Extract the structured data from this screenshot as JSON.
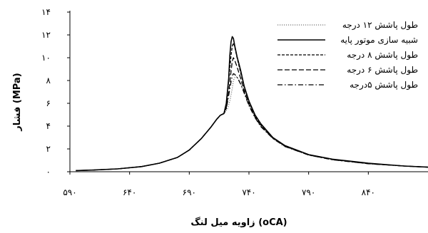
{
  "chart_data": {
    "type": "line",
    "title": "",
    "xlabel": "زاویه میل لنگ  (oCA)",
    "ylabel": "فشار  (MPa)",
    "xlim": [
      590,
      890
    ],
    "ylim": [
      0,
      14
    ],
    "xticks": [
      590,
      640,
      690,
      740,
      790,
      840
    ],
    "xtick_labels": [
      "۵۹۰",
      "۶۴۰",
      "۶۹۰",
      "۷۴۰",
      "۷۹۰",
      "۸۴۰"
    ],
    "yticks": [
      0,
      2,
      4,
      6,
      8,
      10,
      12,
      14
    ],
    "ytick_labels": [
      "۰",
      "۲",
      "۴",
      "۶",
      "۸",
      "۱۰",
      "۱۲",
      "۱۴"
    ],
    "grid": false,
    "legend_position": "top-right",
    "series": [
      {
        "name": "طول پاشش ۱۲ درجه",
        "style": "dotted",
        "points": [
          [
            595,
            0.1
          ],
          [
            610,
            0.15
          ],
          [
            630,
            0.25
          ],
          [
            650,
            0.45
          ],
          [
            665,
            0.75
          ],
          [
            680,
            1.25
          ],
          [
            690,
            1.9
          ],
          [
            700,
            2.9
          ],
          [
            708,
            3.9
          ],
          [
            713,
            4.6
          ],
          [
            716,
            4.95
          ],
          [
            719,
            5.1
          ],
          [
            722,
            5.5
          ],
          [
            724,
            6.2
          ],
          [
            726,
            7.3
          ],
          [
            727,
            8.0
          ],
          [
            728,
            8.25
          ],
          [
            729,
            8.35
          ],
          [
            730,
            8.3
          ],
          [
            732,
            8.0
          ],
          [
            735,
            7.2
          ],
          [
            740,
            5.8
          ],
          [
            745,
            4.8
          ],
          [
            750,
            4.0
          ],
          [
            760,
            2.9
          ],
          [
            770,
            2.2
          ],
          [
            790,
            1.45
          ],
          [
            810,
            1.05
          ],
          [
            840,
            0.7
          ],
          [
            870,
            0.5
          ],
          [
            890,
            0.4
          ]
        ]
      },
      {
        "name": "شبیه سازی موتور پایه",
        "style": "solid",
        "points": [
          [
            595,
            0.1
          ],
          [
            610,
            0.15
          ],
          [
            630,
            0.25
          ],
          [
            650,
            0.45
          ],
          [
            665,
            0.75
          ],
          [
            680,
            1.25
          ],
          [
            690,
            1.9
          ],
          [
            700,
            2.9
          ],
          [
            708,
            3.9
          ],
          [
            713,
            4.6
          ],
          [
            716,
            4.95
          ],
          [
            719,
            5.1
          ],
          [
            721,
            6.0
          ],
          [
            723,
            8.2
          ],
          [
            724,
            10.2
          ],
          [
            725,
            11.4
          ],
          [
            726,
            11.85
          ],
          [
            727,
            11.7
          ],
          [
            728,
            11.1
          ],
          [
            730,
            10.1
          ],
          [
            733,
            8.9
          ],
          [
            736,
            7.5
          ],
          [
            740,
            6.2
          ],
          [
            745,
            5.0
          ],
          [
            750,
            4.2
          ],
          [
            760,
            3.0
          ],
          [
            770,
            2.3
          ],
          [
            790,
            1.5
          ],
          [
            810,
            1.1
          ],
          [
            840,
            0.75
          ],
          [
            870,
            0.5
          ],
          [
            890,
            0.4
          ]
        ]
      },
      {
        "name": "طول پاشش ۸ درجه",
        "style": "dashed",
        "points": [
          [
            595,
            0.1
          ],
          [
            610,
            0.15
          ],
          [
            630,
            0.25
          ],
          [
            650,
            0.45
          ],
          [
            665,
            0.75
          ],
          [
            680,
            1.25
          ],
          [
            690,
            1.9
          ],
          [
            700,
            2.9
          ],
          [
            708,
            3.9
          ],
          [
            713,
            4.6
          ],
          [
            716,
            4.95
          ],
          [
            719,
            5.1
          ],
          [
            721,
            5.9
          ],
          [
            723,
            8.0
          ],
          [
            725,
            10.2
          ],
          [
            726,
            11.0
          ],
          [
            727,
            11.3
          ],
          [
            728,
            11.0
          ],
          [
            730,
            10.0
          ],
          [
            733,
            8.7
          ],
          [
            736,
            7.4
          ],
          [
            740,
            6.1
          ],
          [
            745,
            4.9
          ],
          [
            750,
            4.1
          ],
          [
            760,
            3.0
          ],
          [
            770,
            2.3
          ],
          [
            790,
            1.5
          ],
          [
            810,
            1.08
          ],
          [
            840,
            0.72
          ],
          [
            870,
            0.5
          ],
          [
            890,
            0.4
          ]
        ]
      },
      {
        "name": "طول پاشش ۶ درجه",
        "style": "dash",
        "points": [
          [
            595,
            0.1
          ],
          [
            610,
            0.15
          ],
          [
            630,
            0.25
          ],
          [
            650,
            0.45
          ],
          [
            665,
            0.75
          ],
          [
            680,
            1.25
          ],
          [
            690,
            1.9
          ],
          [
            700,
            2.9
          ],
          [
            708,
            3.9
          ],
          [
            713,
            4.6
          ],
          [
            716,
            4.95
          ],
          [
            719,
            5.1
          ],
          [
            721,
            5.6
          ],
          [
            723,
            7.0
          ],
          [
            725,
            8.8
          ],
          [
            726,
            9.7
          ],
          [
            727,
            10.0
          ],
          [
            728,
            9.8
          ],
          [
            730,
            9.2
          ],
          [
            733,
            8.2
          ],
          [
            736,
            7.1
          ],
          [
            740,
            5.9
          ],
          [
            745,
            4.8
          ],
          [
            750,
            4.0
          ],
          [
            760,
            2.95
          ],
          [
            770,
            2.25
          ],
          [
            790,
            1.47
          ],
          [
            810,
            1.06
          ],
          [
            840,
            0.71
          ],
          [
            870,
            0.5
          ],
          [
            890,
            0.4
          ]
        ]
      },
      {
        "name": "طول پاشش ۵درجه",
        "style": "dashdot",
        "points": [
          [
            595,
            0.1
          ],
          [
            610,
            0.15
          ],
          [
            630,
            0.25
          ],
          [
            650,
            0.45
          ],
          [
            665,
            0.75
          ],
          [
            680,
            1.25
          ],
          [
            690,
            1.9
          ],
          [
            700,
            2.9
          ],
          [
            708,
            3.9
          ],
          [
            713,
            4.6
          ],
          [
            716,
            4.95
          ],
          [
            719,
            5.1
          ],
          [
            721,
            5.5
          ],
          [
            723,
            6.7
          ],
          [
            725,
            7.9
          ],
          [
            726,
            8.4
          ],
          [
            727,
            8.6
          ],
          [
            728,
            8.55
          ],
          [
            730,
            8.3
          ],
          [
            733,
            7.7
          ],
          [
            736,
            6.9
          ],
          [
            740,
            5.8
          ],
          [
            745,
            4.75
          ],
          [
            750,
            3.95
          ],
          [
            760,
            2.92
          ],
          [
            770,
            2.22
          ],
          [
            790,
            1.46
          ],
          [
            810,
            1.05
          ],
          [
            840,
            0.7
          ],
          [
            870,
            0.5
          ],
          [
            890,
            0.4
          ]
        ]
      }
    ]
  }
}
